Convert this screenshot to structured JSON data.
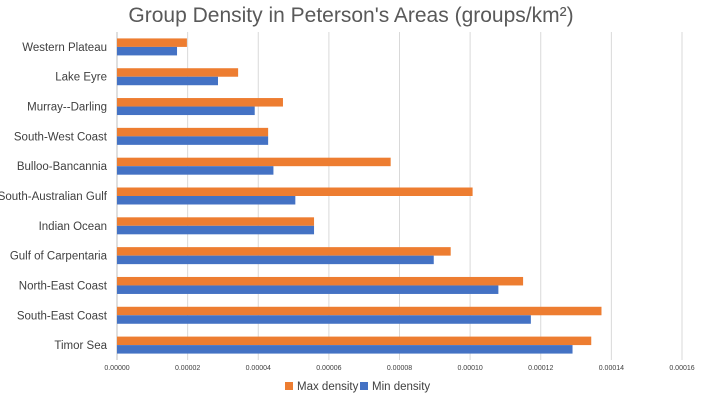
{
  "chart_data": {
    "type": "bar",
    "orientation": "horizontal",
    "title": "Group Density in Peterson's Areas (groups/km²)",
    "xlabel": "",
    "ylabel": "",
    "categories": [
      "Western Plateau",
      "Lake Eyre",
      "Murray--Darling",
      "South-West Coast",
      "Bulloo-Bancannia",
      "South-Australian Gulf",
      "Indian Ocean",
      "Gulf of Carpentaria",
      "North-East Coast",
      "South-East Coast",
      "Timor Sea"
    ],
    "series": [
      {
        "name": "Max density",
        "color": "#ED7D31",
        "values": [
          1.98e-05,
          3.43e-05,
          4.7e-05,
          4.28e-05,
          7.75e-05,
          0.0001007,
          5.58e-05,
          9.45e-05,
          0.000115,
          0.0001372,
          0.0001343
        ]
      },
      {
        "name": "Min density",
        "color": "#4472C4",
        "values": [
          1.7e-05,
          2.86e-05,
          3.9e-05,
          4.28e-05,
          4.43e-05,
          5.05e-05,
          5.58e-05,
          8.97e-05,
          0.000108,
          0.0001172,
          0.000129
        ]
      }
    ],
    "xlim": [
      0,
      0.00016
    ],
    "x_ticks": [
      "0.00000",
      "0.00002",
      "0.00004",
      "0.00006",
      "0.00008",
      "0.00010",
      "0.00012",
      "0.00014",
      "0.00016"
    ],
    "legend_position": "bottom",
    "grid": true
  }
}
